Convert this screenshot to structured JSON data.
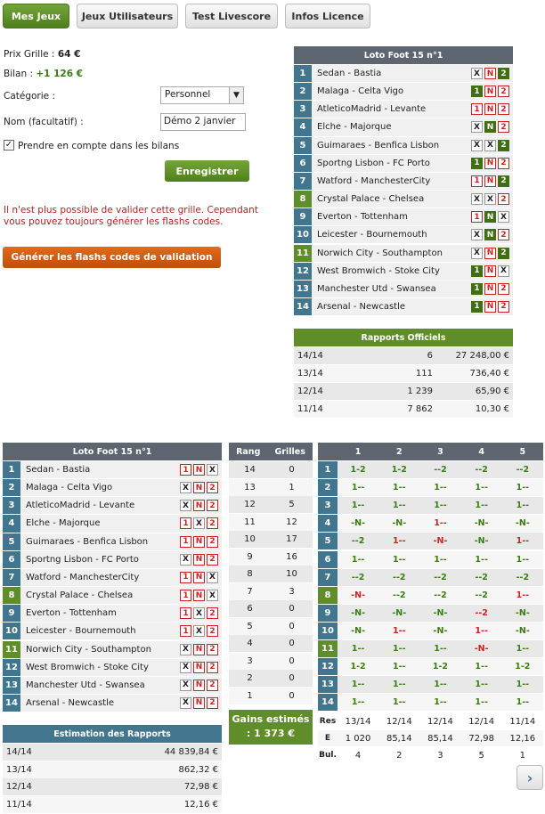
{
  "nav": {
    "tabs": [
      "Mes Jeux",
      "Jeux Utilisateurs",
      "Test Livescore",
      "Infos Licence"
    ],
    "active": 0
  },
  "form": {
    "prix_label": "Prix Grille :",
    "prix_value": "64 €",
    "bilan_label": "Bilan :",
    "bilan_value": "+1 126 €",
    "categorie_label": "Catégorie :",
    "categorie_value": "Personnel",
    "nom_label": "Nom (facultatif) :",
    "nom_value": "Démo 2 janvier",
    "check_label": "Prendre en compte dans les bilans",
    "checked": true,
    "save_label": "Enregistrer",
    "warning": "Il n'est plus possible de valider cette grille. Cependant vous pouvez toujours générer les flashs codes.",
    "flash_label": "Générer les flashs codes de validation"
  },
  "grid1": {
    "title": "Loto Foot 15 n°1",
    "matches": [
      {
        "n": "1",
        "name": "Sedan - Bastia",
        "picks": [
          "X",
          "N",
          "2"
        ],
        "sel": [
          false,
          false,
          true
        ],
        "color": "b"
      },
      {
        "n": "2",
        "name": "Malaga - Celta Vigo",
        "picks": [
          "1",
          "N",
          "2"
        ],
        "sel": [
          true,
          false,
          false
        ],
        "color": "b"
      },
      {
        "n": "3",
        "name": "AtleticoMadrid - Levante",
        "picks": [
          "1",
          "N",
          "2"
        ],
        "sel": [
          false,
          false,
          false
        ],
        "color": "b"
      },
      {
        "n": "4",
        "name": "Elche - Majorque",
        "picks": [
          "X",
          "N",
          "2"
        ],
        "sel": [
          false,
          true,
          false
        ],
        "color": "b"
      },
      {
        "n": "5",
        "name": "Guimaraes - Benfica Lisbon",
        "picks": [
          "X",
          "X",
          "2"
        ],
        "sel": [
          false,
          false,
          true
        ],
        "color": "b"
      },
      {
        "n": "6",
        "name": "Sportng Lisbon - FC Porto",
        "picks": [
          "1",
          "N",
          "2"
        ],
        "sel": [
          true,
          false,
          false
        ],
        "color": "b"
      },
      {
        "n": "7",
        "name": "Watford - ManchesterCity",
        "picks": [
          "1",
          "N",
          "2"
        ],
        "sel": [
          false,
          false,
          true
        ],
        "color": "b"
      },
      {
        "n": "8",
        "name": "Crystal Palace - Chelsea",
        "picks": [
          "X",
          "X",
          "2"
        ],
        "sel": [
          false,
          false,
          false
        ],
        "color": "g"
      },
      {
        "n": "9",
        "name": "Everton - Tottenham",
        "picks": [
          "1",
          "N",
          "X"
        ],
        "sel": [
          false,
          true,
          false
        ],
        "color": "b"
      },
      {
        "n": "10",
        "name": "Leicester - Bournemouth",
        "picks": [
          "X",
          "N",
          "2"
        ],
        "sel": [
          false,
          true,
          false
        ],
        "color": "b"
      },
      {
        "n": "11",
        "name": "Norwich City - Southampton",
        "picks": [
          "X",
          "N",
          "2"
        ],
        "sel": [
          false,
          false,
          true
        ],
        "color": "g"
      },
      {
        "n": "12",
        "name": "West Bromwich - Stoke City",
        "picks": [
          "1",
          "N",
          "X"
        ],
        "sel": [
          true,
          false,
          false
        ],
        "color": "b"
      },
      {
        "n": "13",
        "name": "Manchester Utd - Swansea",
        "picks": [
          "1",
          "N",
          "2"
        ],
        "sel": [
          true,
          false,
          false
        ],
        "color": "b"
      },
      {
        "n": "14",
        "name": "Arsenal - Newcastle",
        "picks": [
          "1",
          "N",
          "2"
        ],
        "sel": [
          true,
          false,
          false
        ],
        "color": "b"
      }
    ]
  },
  "rapports": {
    "title": "Rapports Officiels",
    "rows": [
      {
        "rang": "14/14",
        "n": "6",
        "v": "27 248,00 €"
      },
      {
        "rang": "13/14",
        "n": "111",
        "v": "736,40 €"
      },
      {
        "rang": "12/14",
        "n": "1 239",
        "v": "65,90 €"
      },
      {
        "rang": "11/14",
        "n": "7 862",
        "v": "10,30 €"
      }
    ]
  },
  "grid2": {
    "title": "Loto Foot 15 n°1",
    "matches": [
      {
        "n": "1",
        "name": "Sedan - Bastia",
        "picks": [
          "1",
          "N",
          "X"
        ],
        "color": "b"
      },
      {
        "n": "2",
        "name": "Malaga - Celta Vigo",
        "picks": [
          "X",
          "N",
          "2"
        ],
        "color": "b"
      },
      {
        "n": "3",
        "name": "AtleticoMadrid - Levante",
        "picks": [
          "X",
          "N",
          "2"
        ],
        "color": "b"
      },
      {
        "n": "4",
        "name": "Elche - Majorque",
        "picks": [
          "1",
          "X",
          "2"
        ],
        "color": "b"
      },
      {
        "n": "5",
        "name": "Guimaraes - Benfica Lisbon",
        "picks": [
          "1",
          "N",
          "2"
        ],
        "color": "b"
      },
      {
        "n": "6",
        "name": "Sportng Lisbon - FC Porto",
        "picks": [
          "X",
          "N",
          "2"
        ],
        "color": "b"
      },
      {
        "n": "7",
        "name": "Watford - ManchesterCity",
        "picks": [
          "1",
          "N",
          "X"
        ],
        "color": "b"
      },
      {
        "n": "8",
        "name": "Crystal Palace - Chelsea",
        "picks": [
          "1",
          "N",
          "X"
        ],
        "color": "g"
      },
      {
        "n": "9",
        "name": "Everton - Tottenham",
        "picks": [
          "1",
          "X",
          "2"
        ],
        "color": "b"
      },
      {
        "n": "10",
        "name": "Leicester - Bournemouth",
        "picks": [
          "1",
          "X",
          "2"
        ],
        "color": "b"
      },
      {
        "n": "11",
        "name": "Norwich City - Southampton",
        "picks": [
          "X",
          "N",
          "2"
        ],
        "color": "g"
      },
      {
        "n": "12",
        "name": "West Bromwich - Stoke City",
        "picks": [
          "X",
          "N",
          "2"
        ],
        "color": "b"
      },
      {
        "n": "13",
        "name": "Manchester Utd - Swansea",
        "picks": [
          "X",
          "N",
          "2"
        ],
        "color": "b"
      },
      {
        "n": "14",
        "name": "Arsenal - Newcastle",
        "picks": [
          "X",
          "N",
          "2"
        ],
        "color": "b"
      }
    ]
  },
  "estimation": {
    "title": "Estimation des Rapports",
    "rows": [
      {
        "rang": "14/14",
        "v": "44 839,84 €"
      },
      {
        "rang": "13/14",
        "v": "862,32 €"
      },
      {
        "rang": "12/14",
        "v": "72,98 €"
      },
      {
        "rang": "11/14",
        "v": "12,16 €"
      }
    ]
  },
  "rang_table": {
    "headers": [
      "Rang",
      "Grilles"
    ],
    "rows": [
      [
        "14",
        "0"
      ],
      [
        "13",
        "1"
      ],
      [
        "12",
        "5"
      ],
      [
        "11",
        "12"
      ],
      [
        "10",
        "17"
      ],
      [
        "9",
        "16"
      ],
      [
        "8",
        "10"
      ],
      [
        "7",
        "3"
      ],
      [
        "6",
        "0"
      ],
      [
        "5",
        "0"
      ],
      [
        "4",
        "0"
      ],
      [
        "3",
        "0"
      ],
      [
        "2",
        "0"
      ],
      [
        "1",
        "0"
      ]
    ],
    "gains_label": "Gains estimés : 1 373 €"
  },
  "combo": {
    "headers": [
      "1",
      "2",
      "3",
      "4",
      "5"
    ],
    "rows": [
      [
        "1-2",
        "1-2",
        "--2",
        "--2",
        "--2"
      ],
      [
        "1--",
        "1--",
        "1--",
        "1--",
        "1--"
      ],
      [
        "1--",
        "1--",
        "1--",
        "1--",
        "1--"
      ],
      [
        "-N-",
        "-N-",
        "1--",
        "-N-",
        "-N-"
      ],
      [
        "--2",
        "1--",
        "-N-",
        "-N-",
        "1--"
      ],
      [
        "1--",
        "1--",
        "1--",
        "1--",
        "1--"
      ],
      [
        "--2",
        "--2",
        "--2",
        "--2",
        "--2"
      ],
      [
        "-N-",
        "--2",
        "--2",
        "--2",
        "1--"
      ],
      [
        "-N-",
        "-N-",
        "-N-",
        "--2",
        "-N-"
      ],
      [
        "-N-",
        "1--",
        "-N-",
        "1--",
        "-N-"
      ],
      [
        "1--",
        "1--",
        "1--",
        "-N-",
        "1--"
      ],
      [
        "1-2",
        "1--",
        "1-2",
        "1--",
        "1-2"
      ],
      [
        "1--",
        "1--",
        "1--",
        "1--",
        "1--"
      ],
      [
        "1--",
        "1--",
        "1--",
        "1--",
        "1--"
      ]
    ],
    "red": [
      [
        false,
        false,
        false,
        false,
        false
      ],
      [
        false,
        false,
        false,
        false,
        false
      ],
      [
        false,
        false,
        false,
        false,
        false
      ],
      [
        false,
        false,
        true,
        false,
        false
      ],
      [
        false,
        true,
        true,
        false,
        true
      ],
      [
        false,
        false,
        false,
        false,
        false
      ],
      [
        false,
        false,
        false,
        false,
        false
      ],
      [
        true,
        false,
        false,
        false,
        true
      ],
      [
        false,
        false,
        false,
        true,
        false
      ],
      [
        false,
        true,
        false,
        true,
        false
      ],
      [
        false,
        false,
        false,
        true,
        false
      ],
      [
        false,
        false,
        false,
        false,
        false
      ],
      [
        false,
        false,
        false,
        false,
        false
      ],
      [
        false,
        false,
        false,
        false,
        false
      ]
    ],
    "res_label": "Res",
    "res": [
      "13/14",
      "12/14",
      "12/14",
      "12/14",
      "11/14"
    ],
    "e_label": "E",
    "e": [
      "1 020",
      "85,14",
      "85,14",
      "72,98",
      "12,16"
    ],
    "bul_label": "Bul.",
    "bul": [
      "4",
      "2",
      "3",
      "5",
      "1"
    ]
  },
  "next_icon": "chevron-right-icon"
}
